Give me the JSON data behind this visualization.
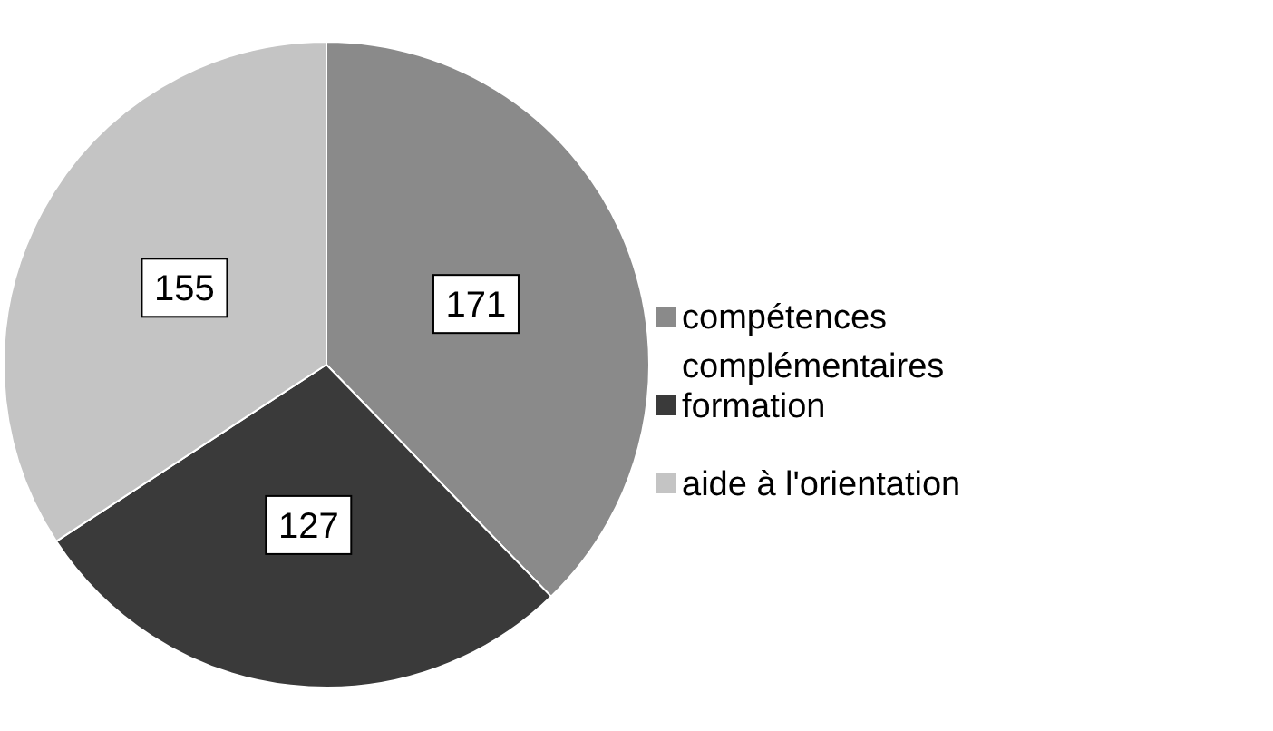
{
  "chart_data": {
    "type": "pie",
    "categories": [
      "compétences complémentaires",
      "formation",
      "aide à l'orientation"
    ],
    "values": [
      171,
      127,
      155
    ],
    "colors": [
      "#8a8a8a",
      "#3a3a3a",
      "#c4c4c4"
    ],
    "data_labels": true,
    "legend": "right"
  }
}
